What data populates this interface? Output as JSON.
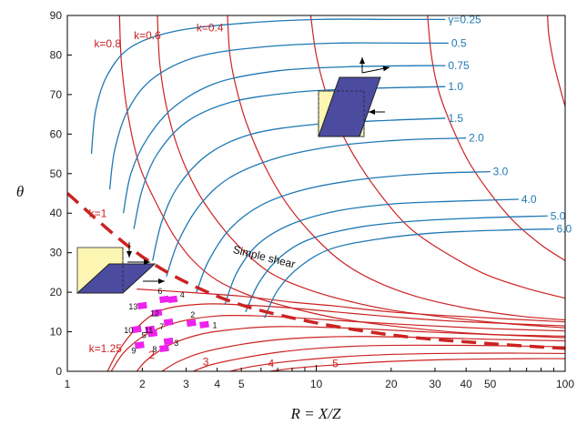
{
  "chart_data": {
    "type": "line",
    "title": "",
    "xlabel": "R = X/Z",
    "ylabel": "θ",
    "xscale": "log",
    "xlim": [
      1,
      100
    ],
    "ylim": [
      0,
      90
    ],
    "x_ticks": [
      1,
      2,
      3,
      4,
      5,
      10,
      20,
      30,
      40,
      50,
      100
    ],
    "y_ticks": [
      0,
      10,
      20,
      30,
      40,
      50,
      60,
      70,
      80,
      90
    ],
    "colors": {
      "k": "#cc2222",
      "gamma": "#1f78b4",
      "points": "#ee22ee",
      "box_fill": "#fdf6b2",
      "para_fill": "#4b4ba0"
    },
    "k_curves": [
      {
        "label": "k=0.8",
        "points": [
          [
            1.62,
            90
          ],
          [
            1.65,
            78
          ],
          [
            1.75,
            65
          ],
          [
            1.95,
            52
          ],
          [
            2.3,
            42
          ],
          [
            2.7,
            34
          ],
          [
            3.2,
            28
          ],
          [
            4,
            23
          ],
          [
            5.5,
            19
          ],
          [
            8,
            16
          ],
          [
            12,
            13.5
          ],
          [
            20,
            11.5
          ],
          [
            40,
            9.7
          ],
          [
            100,
            8.5
          ]
        ]
      },
      {
        "label": "k=0.6",
        "points": [
          [
            2.3,
            90
          ],
          [
            2.35,
            78
          ],
          [
            2.5,
            67
          ],
          [
            2.8,
            56
          ],
          [
            3.3,
            46
          ],
          [
            4,
            38
          ],
          [
            5,
            31
          ],
          [
            6.5,
            25
          ],
          [
            9,
            21
          ],
          [
            13,
            18
          ],
          [
            20,
            15.5
          ],
          [
            35,
            13.5
          ],
          [
            60,
            12
          ],
          [
            100,
            11
          ]
        ]
      },
      {
        "label": "k=0.4",
        "points": [
          [
            4.4,
            90
          ],
          [
            4.5,
            80
          ],
          [
            4.8,
            71
          ],
          [
            5.3,
            62
          ],
          [
            6.2,
            52
          ],
          [
            7.5,
            43
          ],
          [
            9.5,
            35
          ],
          [
            12.5,
            28
          ],
          [
            17,
            23
          ],
          [
            25,
            19
          ],
          [
            40,
            16
          ],
          [
            65,
            14
          ],
          [
            100,
            13
          ]
        ]
      },
      {
        "label": "",
        "points": [
          [
            9.5,
            90
          ],
          [
            10,
            80
          ],
          [
            11,
            70
          ],
          [
            12.5,
            61
          ],
          [
            15,
            52
          ],
          [
            19,
            43
          ],
          [
            24,
            36
          ],
          [
            33,
            30
          ],
          [
            48,
            24.5
          ],
          [
            70,
            21
          ],
          [
            100,
            18.5
          ]
        ]
      },
      {
        "label": "",
        "points": [
          [
            28,
            90
          ],
          [
            29,
            80
          ],
          [
            31,
            71
          ],
          [
            35,
            62
          ],
          [
            41,
            53
          ],
          [
            50,
            45
          ],
          [
            62,
            38
          ],
          [
            80,
            32
          ],
          [
            100,
            28
          ]
        ]
      },
      {
        "label": "",
        "points": [
          [
            85,
            90
          ],
          [
            86,
            85
          ],
          [
            90,
            78
          ],
          [
            96,
            71
          ],
          [
            100,
            67
          ]
        ]
      },
      {
        "label": "k=1",
        "points": [
          [
            1,
            45
          ],
          [
            100,
            0
          ]
        ]
      },
      {
        "label": "",
        "points": [
          [
            1.9,
            20.8
          ],
          [
            3,
            20
          ],
          [
            5,
            19
          ],
          [
            8,
            17.5
          ],
          [
            12,
            16.5
          ],
          [
            20,
            15
          ],
          [
            35,
            14
          ],
          [
            100,
            12.5
          ]
        ]
      },
      {
        "label": "k=1.25",
        "points": [
          [
            1.45,
            0
          ],
          [
            1.6,
            5
          ],
          [
            1.9,
            11
          ],
          [
            2.4,
            15.5
          ],
          [
            3.5,
            17
          ],
          [
            5,
            16.8
          ],
          [
            8,
            16
          ],
          [
            12,
            15
          ],
          [
            20,
            13.8
          ],
          [
            35,
            12.7
          ],
          [
            100,
            11.5
          ]
        ]
      },
      {
        "label": "",
        "points": [
          [
            1.5,
            0
          ],
          [
            1.7,
            5
          ],
          [
            2.1,
            9.5
          ],
          [
            2.8,
            12.5
          ],
          [
            4,
            14
          ],
          [
            6,
            14
          ],
          [
            9,
            13.4
          ],
          [
            14,
            12.6
          ],
          [
            25,
            11.7
          ],
          [
            50,
            10.8
          ],
          [
            100,
            10.2
          ]
        ]
      },
      {
        "label": "2",
        "points": [
          [
            1.9,
            0
          ],
          [
            2.1,
            3
          ],
          [
            2.6,
            6.8
          ],
          [
            3.5,
            9.5
          ],
          [
            5,
            10.8
          ],
          [
            7,
            11.3
          ],
          [
            10,
            11.2
          ],
          [
            15,
            10.8
          ],
          [
            25,
            10.1
          ],
          [
            50,
            9.3
          ],
          [
            100,
            8.9
          ]
        ]
      },
      {
        "label": "",
        "points": [
          [
            2.4,
            0
          ],
          [
            2.8,
            2.5
          ],
          [
            3.5,
            4.8
          ],
          [
            5,
            6.8
          ],
          [
            7,
            8
          ],
          [
            10,
            8.6
          ],
          [
            15,
            8.8
          ],
          [
            25,
            8.6
          ],
          [
            50,
            8.1
          ],
          [
            100,
            7.7
          ]
        ]
      },
      {
        "label": "3",
        "points": [
          [
            3.2,
            0
          ],
          [
            3.8,
            1.7
          ],
          [
            5,
            3.3
          ],
          [
            7,
            4.8
          ],
          [
            10,
            5.8
          ],
          [
            15,
            6.4
          ],
          [
            25,
            6.6
          ],
          [
            50,
            6.5
          ],
          [
            100,
            6.2
          ]
        ]
      },
      {
        "label": "4",
        "points": [
          [
            4.5,
            0
          ],
          [
            5.5,
            1.2
          ],
          [
            7.5,
            2.4
          ],
          [
            11,
            3.4
          ],
          [
            17,
            4.1
          ],
          [
            30,
            4.5
          ],
          [
            60,
            4.6
          ],
          [
            100,
            4.5
          ]
        ]
      },
      {
        "label": "5",
        "points": [
          [
            6.5,
            0
          ],
          [
            8.5,
            0.9
          ],
          [
            13,
            1.8
          ],
          [
            20,
            2.5
          ],
          [
            35,
            3
          ],
          [
            70,
            3.2
          ],
          [
            100,
            3.2
          ]
        ]
      }
    ],
    "gamma_curves": [
      {
        "label": "γ=0.25",
        "points": [
          [
            1.25,
            55
          ],
          [
            1.3,
            66
          ],
          [
            1.45,
            75
          ],
          [
            1.8,
            82
          ],
          [
            2.7,
            86
          ],
          [
            5,
            88
          ],
          [
            10,
            89
          ],
          [
            20,
            89
          ],
          [
            33,
            89
          ]
        ]
      },
      {
        "label": "0.5",
        "points": [
          [
            1.48,
            46
          ],
          [
            1.55,
            56
          ],
          [
            1.75,
            66
          ],
          [
            2.2,
            74
          ],
          [
            3.3,
            79.5
          ],
          [
            6,
            82
          ],
          [
            12,
            83
          ],
          [
            25,
            83
          ],
          [
            34,
            83
          ]
        ]
      },
      {
        "label": "0.75",
        "points": [
          [
            1.68,
            40
          ],
          [
            1.8,
            50
          ],
          [
            2.1,
            59
          ],
          [
            2.7,
            67
          ],
          [
            4,
            73
          ],
          [
            7,
            76
          ],
          [
            13,
            77
          ],
          [
            25,
            77.3
          ],
          [
            33,
            77.3
          ]
        ]
      },
      {
        "label": "1.0",
        "points": [
          [
            1.85,
            36
          ],
          [
            2,
            46
          ],
          [
            2.3,
            55
          ],
          [
            3,
            63
          ],
          [
            4.5,
            68
          ],
          [
            8,
            70.5
          ],
          [
            15,
            71.5
          ],
          [
            33,
            72
          ]
        ]
      },
      {
        "label": "1.5",
        "points": [
          [
            2.2,
            28
          ],
          [
            2.4,
            38
          ],
          [
            2.8,
            47
          ],
          [
            3.7,
            55
          ],
          [
            5.5,
            60
          ],
          [
            10,
            62.5
          ],
          [
            20,
            63.5
          ],
          [
            33,
            64
          ]
        ]
      },
      {
        "label": "2.0",
        "points": [
          [
            2.5,
            24
          ],
          [
            2.8,
            33
          ],
          [
            3.4,
            42
          ],
          [
            4.5,
            49
          ],
          [
            7,
            54
          ],
          [
            12,
            57
          ],
          [
            22,
            58.5
          ],
          [
            40,
            59
          ]
        ]
      },
      {
        "label": "3.0",
        "points": [
          [
            3.3,
            20
          ],
          [
            3.7,
            28
          ],
          [
            4.5,
            36
          ],
          [
            6,
            42
          ],
          [
            9,
            46
          ],
          [
            15,
            48.5
          ],
          [
            28,
            50
          ],
          [
            50,
            50.5
          ]
        ]
      },
      {
        "label": "4.0",
        "points": [
          [
            4.3,
            17
          ],
          [
            4.8,
            25
          ],
          [
            5.8,
            32
          ],
          [
            7.8,
            37
          ],
          [
            12,
            40.5
          ],
          [
            20,
            42.3
          ],
          [
            35,
            43
          ],
          [
            65,
            43.5
          ]
        ]
      },
      {
        "label": "5.0",
        "points": [
          [
            5.2,
            15
          ],
          [
            5.9,
            22.5
          ],
          [
            7.2,
            29
          ],
          [
            9.5,
            33.5
          ],
          [
            15,
            36.5
          ],
          [
            25,
            38
          ],
          [
            45,
            38.8
          ],
          [
            85,
            39.3
          ]
        ]
      },
      {
        "label": "6.0",
        "points": [
          [
            6.2,
            13.5
          ],
          [
            7,
            20.5
          ],
          [
            8.6,
            26.5
          ],
          [
            11.5,
            31
          ],
          [
            18,
            33.5
          ],
          [
            30,
            35
          ],
          [
            55,
            35.7
          ],
          [
            90,
            36
          ]
        ]
      }
    ],
    "simple_shear": {
      "label": "Simple shear",
      "points": [
        [
          1,
          45
        ],
        [
          2,
          29
        ],
        [
          4,
          19
        ],
        [
          8,
          13.5
        ],
        [
          20,
          9.2
        ],
        [
          50,
          7
        ],
        [
          100,
          5.8
        ]
      ]
    },
    "sample_points": [
      {
        "id": "1",
        "x": 3.55,
        "y": 11.8
      },
      {
        "id": "2",
        "x": 3.15,
        "y": 12.2
      },
      {
        "id": "3",
        "x": 2.55,
        "y": 7.6
      },
      {
        "id": "4",
        "x": 2.65,
        "y": 18.2
      },
      {
        "id": "5",
        "x": 2.2,
        "y": 9.6
      },
      {
        "id": "6",
        "x": 2.45,
        "y": 18.2
      },
      {
        "id": "7",
        "x": 2.55,
        "y": 12.4
      },
      {
        "id": "8",
        "x": 2.45,
        "y": 5.8
      },
      {
        "id": "9",
        "x": 1.95,
        "y": 6.6
      },
      {
        "id": "10",
        "x": 1.9,
        "y": 10.6
      },
      {
        "id": "11",
        "x": 2.15,
        "y": 10.6
      },
      {
        "id": "12",
        "x": 2.3,
        "y": 14.8
      },
      {
        "id": "13",
        "x": 2.0,
        "y": 16.6
      }
    ]
  },
  "insets": {
    "top": {
      "description": "",
      "arrows": "up-right-left"
    },
    "left": {
      "description": "",
      "arrows": "down-right"
    }
  }
}
